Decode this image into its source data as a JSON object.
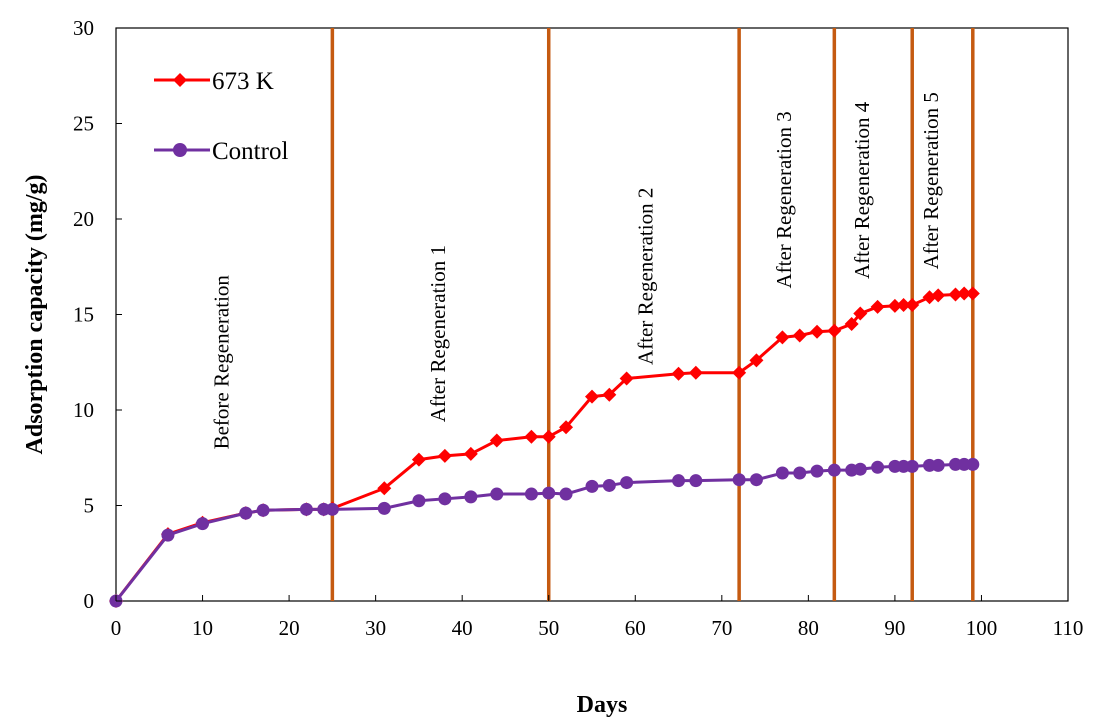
{
  "chart_data": {
    "type": "line",
    "title": "",
    "xlabel": "Days",
    "ylabel": "Adsorption capacity (mg/g)",
    "xlim": [
      0,
      110
    ],
    "ylim": [
      0,
      30
    ],
    "x_ticks": [
      0,
      10,
      20,
      30,
      40,
      50,
      60,
      70,
      80,
      90,
      100,
      110
    ],
    "y_ticks": [
      0,
      5,
      10,
      15,
      20,
      25,
      30
    ],
    "grid": false,
    "legend_position": "top-left",
    "series": [
      {
        "name": "673 K",
        "color": "#ff0000",
        "marker": "diamond",
        "x": [
          0,
          6,
          10,
          15,
          17,
          22,
          24,
          25,
          31,
          35,
          38,
          41,
          44,
          48,
          50,
          52,
          55,
          57,
          59,
          65,
          67,
          72,
          74,
          77,
          79,
          81,
          83,
          85,
          86,
          88,
          90,
          91,
          92,
          94,
          95,
          97,
          98,
          99
        ],
        "y": [
          0,
          3.5,
          4.1,
          4.6,
          4.75,
          4.8,
          4.8,
          4.85,
          5.9,
          7.4,
          7.6,
          7.7,
          8.4,
          8.6,
          8.6,
          9.1,
          10.7,
          10.8,
          11.65,
          11.9,
          11.95,
          11.95,
          12.6,
          13.8,
          13.9,
          14.1,
          14.15,
          14.5,
          15.05,
          15.4,
          15.45,
          15.5,
          15.5,
          15.9,
          16.0,
          16.05,
          16.1,
          16.1
        ]
      },
      {
        "name": "Control",
        "color": "#7030a0",
        "marker": "circle",
        "x": [
          0,
          6,
          10,
          15,
          17,
          22,
          24,
          25,
          31,
          35,
          38,
          41,
          44,
          48,
          50,
          52,
          55,
          57,
          59,
          65,
          67,
          72,
          74,
          77,
          79,
          81,
          83,
          85,
          86,
          88,
          90,
          91,
          92,
          94,
          95,
          97,
          98,
          99
        ],
        "y": [
          0,
          3.45,
          4.05,
          4.6,
          4.75,
          4.8,
          4.8,
          4.8,
          4.85,
          5.25,
          5.35,
          5.45,
          5.6,
          5.6,
          5.65,
          5.6,
          6.0,
          6.05,
          6.2,
          6.3,
          6.3,
          6.35,
          6.35,
          6.7,
          6.7,
          6.8,
          6.85,
          6.85,
          6.9,
          7.0,
          7.05,
          7.05,
          7.05,
          7.1,
          7.1,
          7.15,
          7.15,
          7.15
        ]
      }
    ],
    "vertical_lines": {
      "x": [
        25,
        50,
        72,
        83,
        92,
        99
      ],
      "color": "#c55a11"
    },
    "annotations": [
      {
        "text": "Before Regeneration",
        "x": 13,
        "y": 12.5
      },
      {
        "text": "After Regeneration 1",
        "x": 38,
        "y": 14
      },
      {
        "text": "After Regeneration 2",
        "x": 62,
        "y": 17
      },
      {
        "text": "After Regeneration 3",
        "x": 78,
        "y": 21
      },
      {
        "text": "After Regeneration 4",
        "x": 87,
        "y": 21.5
      },
      {
        "text": "After Regeneration 5",
        "x": 95,
        "y": 22
      }
    ]
  }
}
